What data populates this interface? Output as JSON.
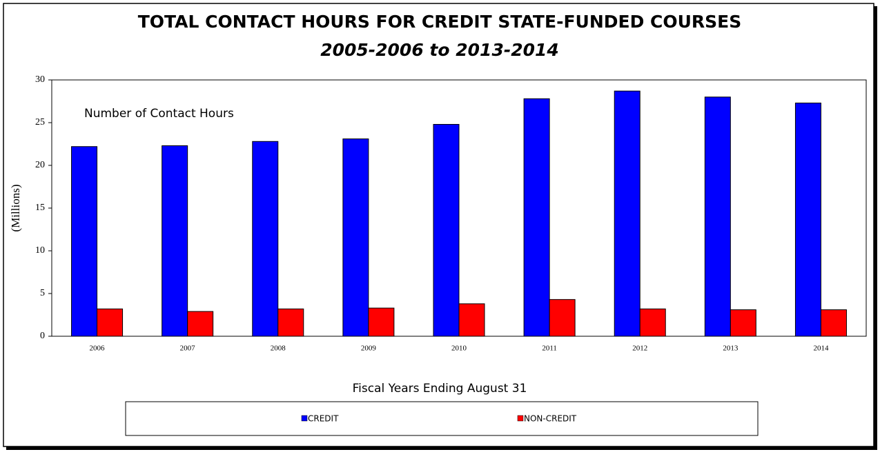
{
  "chart_data": {
    "type": "bar",
    "title": "TOTAL CONTACT HOURS FOR CREDIT STATE-FUNDED COURSES",
    "subtitle": "2005-2006 to 2013-2014",
    "annotation": "Number of Contact Hours",
    "y_label": "(Millions)",
    "x_label": "Fiscal Years Ending August 31",
    "categories": [
      "2006",
      "2007",
      "2008",
      "2009",
      "2010",
      "2011",
      "2012",
      "2013",
      "2014"
    ],
    "series": [
      {
        "name": "CREDIT",
        "color": "#0000ff",
        "values": [
          22.2,
          22.3,
          22.8,
          23.1,
          24.8,
          27.8,
          28.7,
          28.0,
          27.3
        ]
      },
      {
        "name": "NON-CREDIT",
        "color": "#ff0000",
        "values": [
          3.2,
          2.9,
          3.2,
          3.3,
          3.8,
          4.3,
          3.2,
          3.1,
          3.1
        ]
      }
    ],
    "ylim": [
      0,
      30
    ],
    "yticks": [
      0,
      5,
      10,
      15,
      20,
      25,
      30
    ],
    "grid": false,
    "legend": "bottom"
  }
}
